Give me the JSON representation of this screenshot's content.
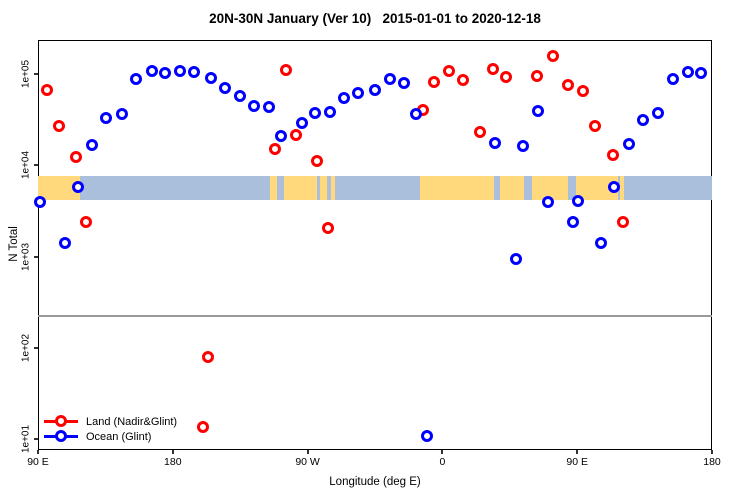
{
  "title": "20N-30N January (Ver 10)   2015-01-01 to 2020-12-18",
  "chart_data": {
    "type": "scatter",
    "title": "20N-30N January (Ver 10)   2015-01-01 to 2020-12-18",
    "xlabel": "Longitude (deg E)",
    "ylabel": "N Total",
    "x_axis": {
      "note": "axis wraps: 90E eastward to 180, 90W, 0, 90E, 180; ticks_deg measured from left edge",
      "ticks_deg": [
        0,
        90,
        180,
        270,
        360,
        450
      ],
      "tick_labels": [
        "90 E",
        "180",
        "90 W",
        "0",
        "90 E",
        "180"
      ],
      "range_deg": [
        0,
        450
      ]
    },
    "y_axis": {
      "scale": "log",
      "tick_values": [
        10,
        100,
        1000,
        10000,
        100000
      ],
      "tick_labels": [
        "1e+01",
        "1e+02",
        "1e+03",
        "1e+04",
        "1e+05"
      ],
      "range": [
        6.5,
        240000
      ],
      "grid": false
    },
    "threshold_line": {
      "n": 224,
      "color": "#999999"
    },
    "map_band": {
      "n_top": 7600,
      "n_bottom": 4170,
      "ocean_color": "#aabfdc",
      "land_color": "#ffd97c",
      "land_segments_deg": [
        [
          0,
          28
        ],
        [
          154.9,
          159.6
        ],
        [
          164.2,
          186.3
        ],
        [
          188.3,
          193.0
        ],
        [
          195.6,
          198.3
        ],
        [
          255.1,
          304.5
        ],
        [
          308.5,
          324.5
        ],
        [
          329.8,
          353.9
        ],
        [
          359.2,
          387.3
        ],
        [
          388.6,
          391.2
        ]
      ]
    },
    "series": [
      {
        "name": "Land (Nadir&Glint)",
        "color": "#ff0000",
        "points": [
          [
            6.0,
            66800
          ],
          [
            14.0,
            26900
          ],
          [
            25.4,
            12300
          ],
          [
            32.0,
            2400
          ],
          [
            113.5,
            79
          ],
          [
            110.2,
            13.6
          ],
          [
            158.2,
            15100
          ],
          [
            165.6,
            110600
          ],
          [
            172.3,
            21500
          ],
          [
            186.3,
            11100
          ],
          [
            193.6,
            2060
          ],
          [
            257.0,
            40300
          ],
          [
            264.4,
            81700
          ],
          [
            274.4,
            108000
          ],
          [
            283.7,
            85900
          ],
          [
            295.1,
            23200
          ],
          [
            303.8,
            113500
          ],
          [
            312.5,
            92700
          ],
          [
            333.2,
            95100
          ],
          [
            343.9,
            157400
          ],
          [
            353.9,
            75800
          ],
          [
            363.9,
            65200
          ],
          [
            371.9,
            26900
          ],
          [
            383.9,
            13000
          ],
          [
            390.6,
            2400
          ]
        ]
      },
      {
        "name": "Ocean (Glint)",
        "color": "#0000ff",
        "points": [
          [
            1.3,
            3960
          ],
          [
            18.0,
            1410
          ],
          [
            26.7,
            5780
          ],
          [
            36.1,
            16700
          ],
          [
            45.4,
            33000
          ],
          [
            56.1,
            36500
          ],
          [
            65.4,
            88100
          ],
          [
            76.1,
            108000
          ],
          [
            84.8,
            102600
          ],
          [
            94.8,
            108000
          ],
          [
            104.2,
            105200
          ],
          [
            115.5,
            90400
          ],
          [
            124.9,
            70300
          ],
          [
            134.9,
            57400
          ],
          [
            144.2,
            44600
          ],
          [
            154.2,
            43500
          ],
          [
            162.2,
            20900
          ],
          [
            176.3,
            29000
          ],
          [
            185.0,
            37400
          ],
          [
            195.0,
            38300
          ],
          [
            204.3,
            54600
          ],
          [
            213.7,
            61900
          ],
          [
            225.0,
            66800
          ],
          [
            235.0,
            88100
          ],
          [
            244.4,
            79700
          ],
          [
            252.4,
            36500
          ],
          [
            259.7,
            10.8
          ],
          [
            305.1,
            17500
          ],
          [
            319.1,
            940
          ],
          [
            323.8,
            16300
          ],
          [
            333.8,
            39300
          ],
          [
            340.5,
            3960
          ],
          [
            357.2,
            2400
          ],
          [
            360.6,
            4070
          ],
          [
            375.9,
            1410
          ],
          [
            384.6,
            5780
          ],
          [
            394.6,
            17100
          ],
          [
            404.0,
            31300
          ],
          [
            414.0,
            37400
          ],
          [
            424.0,
            88100
          ],
          [
            434.0,
            105200
          ],
          [
            442.7,
            102600
          ]
        ]
      }
    ],
    "legend_position": "bottom-left"
  },
  "legend": {
    "items": [
      {
        "label": "Land (Nadir&Glint)",
        "color": "#ff0000"
      },
      {
        "label": "Ocean (Glint)",
        "color": "#0000ff"
      }
    ]
  }
}
